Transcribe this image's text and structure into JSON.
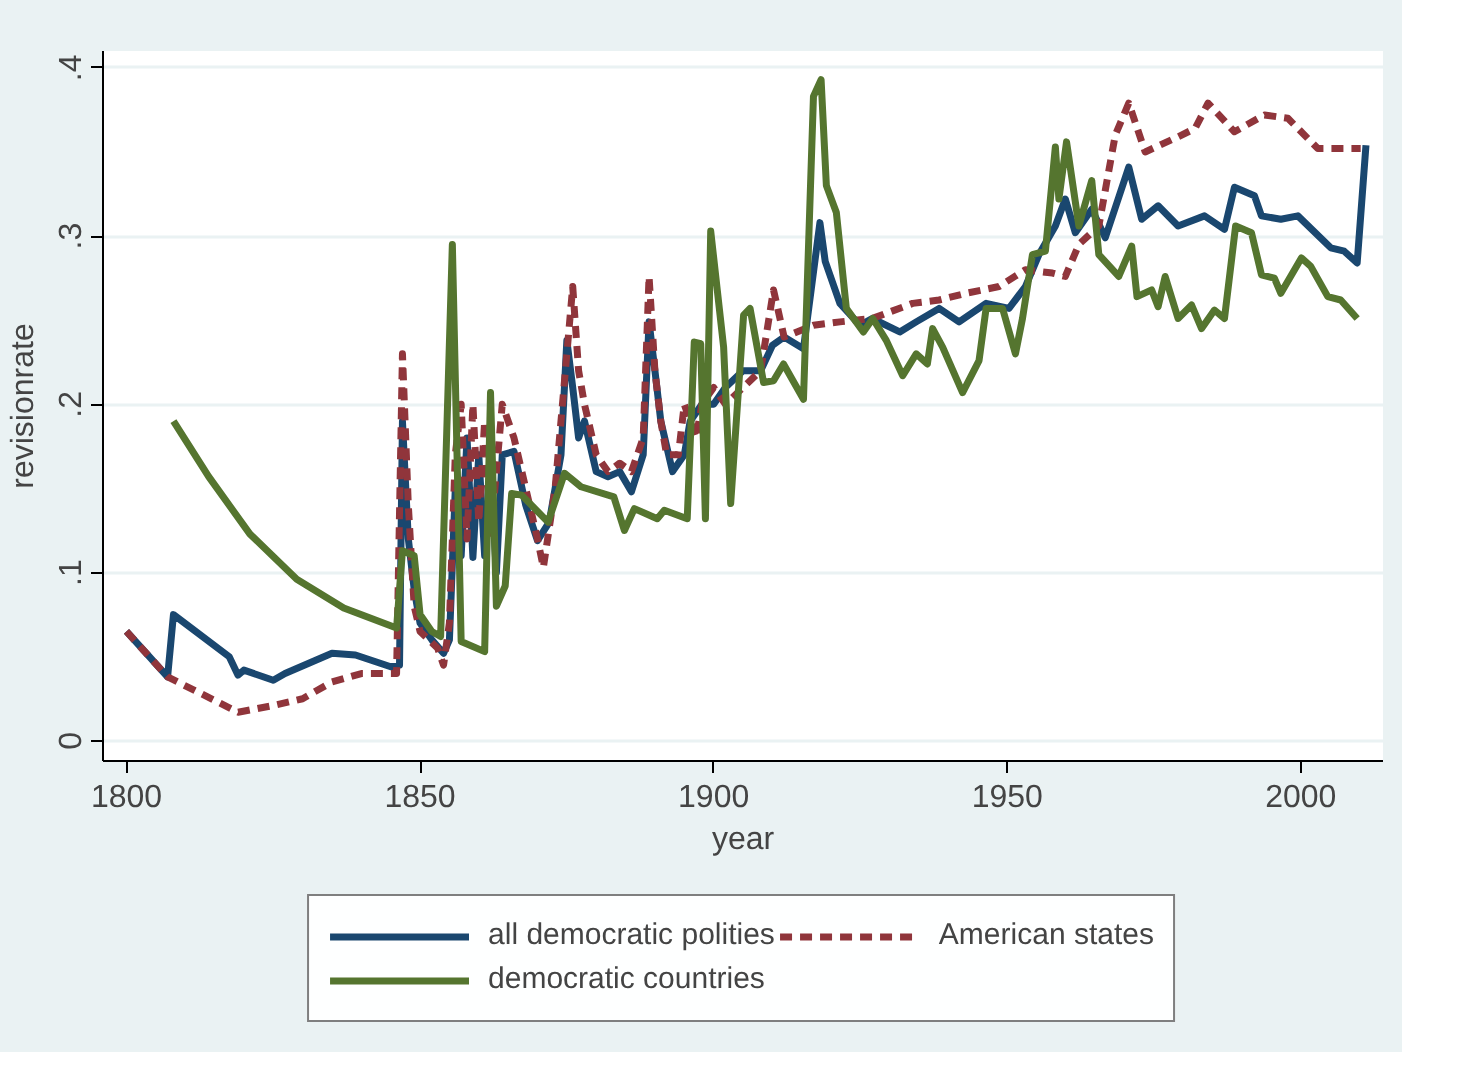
{
  "chart_data": {
    "type": "line",
    "xlabel": "year",
    "ylabel": "revisionrate",
    "xlim": [
      1796,
      2014
    ],
    "ylim": [
      -0.012,
      0.41
    ],
    "xticks": [
      1800,
      1850,
      1900,
      1950,
      2000
    ],
    "yticks": [
      {
        "value": 0,
        "label": "0"
      },
      {
        "value": 0.1,
        "label": ".1"
      },
      {
        "value": 0.2,
        "label": ".2"
      },
      {
        "value": 0.3,
        "label": ".3"
      },
      {
        "value": 0.4,
        "label": ".4"
      }
    ],
    "grid": "y",
    "legend": "bottom",
    "series": [
      {
        "name": "all democratic polities",
        "color": "#1a476f",
        "line_style": "solid",
        "x": [
          1800,
          1807,
          1808,
          1817.5,
          1819,
          1820,
          1825,
          1827,
          1835,
          1839,
          1845,
          1846.5,
          1847,
          1848,
          1849,
          1850,
          1852,
          1854,
          1855,
          1856,
          1857,
          1858,
          1859,
          1860,
          1861,
          1862,
          1863,
          1864,
          1866,
          1868,
          1870,
          1872,
          1874,
          1875,
          1876,
          1877,
          1878,
          1880,
          1882,
          1884,
          1886,
          1888,
          1889,
          1890,
          1891,
          1893,
          1895,
          1896,
          1898,
          1900,
          1902,
          1905,
          1908,
          1910,
          1912,
          1915.3,
          1918.1,
          1919,
          1921.5,
          1924.9,
          1927,
          1931.7,
          1934.5,
          1938.4,
          1941.8,
          1946.4,
          1950.3,
          1953.1,
          1955.4,
          1958.2,
          1959.9,
          1961.6,
          1964.4,
          1966.7,
          1970.7,
          1972.9,
          1975.7,
          1979.1,
          1983.6,
          1987,
          1988.7,
          1992.1,
          1993.3,
          1996.6,
          1999.5,
          2005.1,
          2007.4,
          2009.6,
          2011.1
        ],
        "values": [
          0.065,
          0.038,
          0.075,
          0.05,
          0.039,
          0.042,
          0.036,
          0.04,
          0.052,
          0.051,
          0.044,
          0.045,
          0.19,
          0.12,
          0.09,
          0.07,
          0.06,
          0.052,
          0.06,
          0.15,
          0.11,
          0.18,
          0.109,
          0.17,
          0.11,
          0.16,
          0.1,
          0.17,
          0.172,
          0.14,
          0.119,
          0.13,
          0.17,
          0.238,
          0.21,
          0.18,
          0.19,
          0.16,
          0.157,
          0.16,
          0.148,
          0.17,
          0.249,
          0.22,
          0.19,
          0.16,
          0.17,
          0.19,
          0.2,
          0.2,
          0.21,
          0.22,
          0.22,
          0.235,
          0.24,
          0.233,
          0.308,
          0.285,
          0.26,
          0.247,
          0.251,
          0.243,
          0.249,
          0.257,
          0.249,
          0.26,
          0.257,
          0.27,
          0.289,
          0.306,
          0.322,
          0.302,
          0.316,
          0.299,
          0.341,
          0.31,
          0.318,
          0.306,
          0.312,
          0.304,
          0.329,
          0.324,
          0.312,
          0.31,
          0.312,
          0.293,
          0.291,
          0.284,
          0.354
        ]
      },
      {
        "name": "American states",
        "color": "#90353b",
        "line_style": "dashed",
        "x": [
          1800,
          1807,
          1819,
          1825,
          1830,
          1835,
          1840,
          1846,
          1847,
          1848,
          1849,
          1850,
          1853,
          1854,
          1855,
          1856,
          1857,
          1858,
          1859,
          1860,
          1861,
          1862,
          1864,
          1866,
          1868,
          1870,
          1871,
          1873,
          1875,
          1876,
          1877,
          1878,
          1880,
          1882,
          1884,
          1886,
          1888,
          1889,
          1890,
          1891,
          1892,
          1894,
          1895,
          1897,
          1898,
          1900,
          1902,
          1905,
          1908,
          1910.2,
          1912,
          1917,
          1921.5,
          1927,
          1933.9,
          1938.4,
          1943,
          1948.6,
          1953.1,
          1957.7,
          1959.9,
          1962.2,
          1965.6,
          1968.4,
          1970.7,
          1973.5,
          1979.1,
          1982,
          1984.2,
          1988.7,
          1993.8,
          1997.8,
          2002.9,
          2010.2
        ],
        "values": [
          0.065,
          0.038,
          0.017,
          0.021,
          0.025,
          0.035,
          0.04,
          0.04,
          0.23,
          0.14,
          0.08,
          0.065,
          0.055,
          0.045,
          0.07,
          0.17,
          0.2,
          0.12,
          0.2,
          0.13,
          0.19,
          0.12,
          0.2,
          0.18,
          0.15,
          0.12,
          0.103,
          0.15,
          0.23,
          0.27,
          0.22,
          0.2,
          0.17,
          0.16,
          0.165,
          0.16,
          0.18,
          0.276,
          0.22,
          0.19,
          0.17,
          0.17,
          0.2,
          0.18,
          0.2,
          0.21,
          0.2,
          0.21,
          0.22,
          0.268,
          0.24,
          0.247,
          0.249,
          0.251,
          0.26,
          0.262,
          0.266,
          0.27,
          0.28,
          0.278,
          0.276,
          0.295,
          0.306,
          0.36,
          0.379,
          0.35,
          0.359,
          0.364,
          0.379,
          0.362,
          0.372,
          0.37,
          0.352,
          0.352
        ]
      },
      {
        "name": "democratic countries",
        "color": "#55752f",
        "line_style": "solid",
        "x": [
          1808,
          1814,
          1821,
          1829,
          1837,
          1846,
          1847,
          1849,
          1850,
          1852,
          1853.5,
          1855.5,
          1857,
          1861,
          1862,
          1863,
          1864.5,
          1865.6,
          1867.3,
          1871.8,
          1874.6,
          1877.4,
          1883,
          1884.8,
          1886.5,
          1890.4,
          1891.6,
          1895.5,
          1896.7,
          1897.8,
          1898.6,
          1899.5,
          1901.7,
          1902.9,
          1905.1,
          1906.2,
          1908.5,
          1910.2,
          1911.9,
          1915.3,
          1917,
          1918.3,
          1919.2,
          1920.9,
          1922.6,
          1925.5,
          1927.1,
          1929.4,
          1932.2,
          1934.5,
          1936.4,
          1937.3,
          1939,
          1942.4,
          1945.2,
          1946.4,
          1949.2,
          1951.4,
          1952.6,
          1954.3,
          1956.5,
          1958.2,
          1958.8,
          1960.1,
          1962.2,
          1964.4,
          1965.6,
          1969,
          1971.2,
          1972.1,
          1974.6,
          1975.7,
          1976.9,
          1979.1,
          1981.4,
          1983.1,
          1985.3,
          1987,
          1988.9,
          1991.6,
          1993.3,
          1995.5,
          1996.6,
          2000.1,
          2001.7,
          2004.6,
          2006.8,
          2009.6
        ],
        "values": [
          0.19,
          0.157,
          0.123,
          0.096,
          0.079,
          0.067,
          0.113,
          0.11,
          0.075,
          0.065,
          0.062,
          0.295,
          0.059,
          0.053,
          0.207,
          0.08,
          0.092,
          0.147,
          0.146,
          0.13,
          0.159,
          0.151,
          0.145,
          0.125,
          0.138,
          0.132,
          0.137,
          0.132,
          0.237,
          0.236,
          0.132,
          0.303,
          0.234,
          0.141,
          0.253,
          0.257,
          0.213,
          0.214,
          0.224,
          0.203,
          0.383,
          0.393,
          0.33,
          0.314,
          0.257,
          0.243,
          0.251,
          0.238,
          0.217,
          0.23,
          0.224,
          0.245,
          0.234,
          0.207,
          0.226,
          0.257,
          0.257,
          0.23,
          0.251,
          0.289,
          0.291,
          0.353,
          0.322,
          0.356,
          0.306,
          0.333,
          0.289,
          0.276,
          0.294,
          0.264,
          0.268,
          0.258,
          0.276,
          0.251,
          0.259,
          0.245,
          0.256,
          0.251,
          0.306,
          0.302,
          0.277,
          0.275,
          0.266,
          0.287,
          0.282,
          0.264,
          0.262,
          0.251
        ]
      }
    ]
  }
}
